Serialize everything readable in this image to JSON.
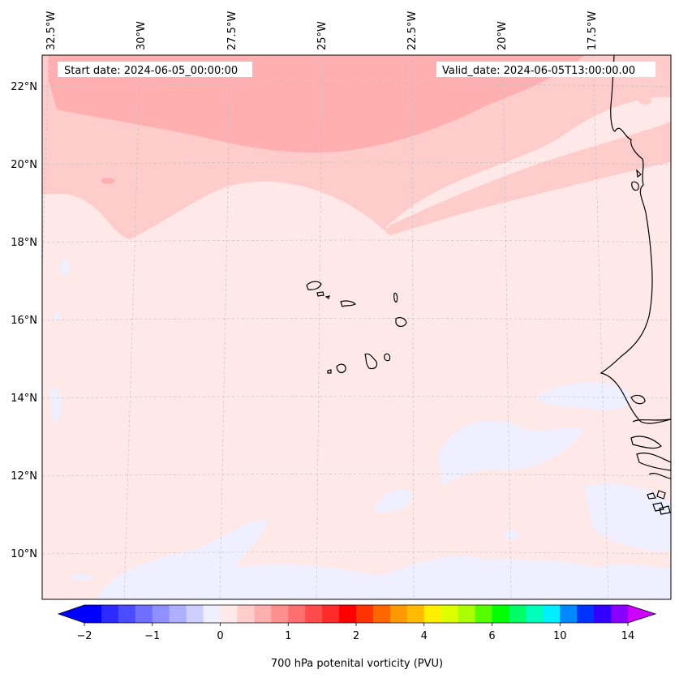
{
  "map": {
    "start_label": "Start date: 2024-06-05_00:00:00",
    "valid_label": "Valid_date: 2024-06-05T13:00:00.00",
    "lon_labels": [
      "32.5°W",
      "30°W",
      "27.5°W",
      "25°W",
      "22.5°W",
      "20°W",
      "17.5°W"
    ],
    "lat_labels": [
      "22°N",
      "20°N",
      "18°N",
      "16°N",
      "14°N",
      "12°N",
      "10°N"
    ],
    "region": "Eastern tropical Atlantic - Cape Verde Islands and West African coast"
  },
  "colorbar": {
    "title": "700 hPa potenital vorticity (PVU)",
    "tick_labels": [
      "−2",
      "−1",
      "0",
      "1",
      "2",
      "4",
      "6",
      "10",
      "14"
    ],
    "colors": [
      "#0000ff",
      "#2a2aff",
      "#4b4bff",
      "#6f6fff",
      "#8f8fff",
      "#afafff",
      "#cfcfff",
      "#efefff",
      "#ffe8e8",
      "#ffcccc",
      "#ffafaf",
      "#ff8f8f",
      "#ff6f6f",
      "#ff4b4b",
      "#ff2a2a",
      "#ff0000",
      "#ff3300",
      "#ff6600",
      "#ff9900",
      "#ffbb00",
      "#ffee00",
      "#ddff00",
      "#aaff00",
      "#55ff00",
      "#00ff00",
      "#00ff66",
      "#00ffbb",
      "#00eeff",
      "#0088ff",
      "#0033ff",
      "#3300ff",
      "#8800ff"
    ],
    "extend_low": "#0000ff",
    "extend_high": "#cc00ff"
  },
  "field_colors": {
    "background": "#ffe8e8",
    "light_pink": "#ffcccc",
    "pink": "#ffafaf",
    "lavender": "#efefff"
  }
}
